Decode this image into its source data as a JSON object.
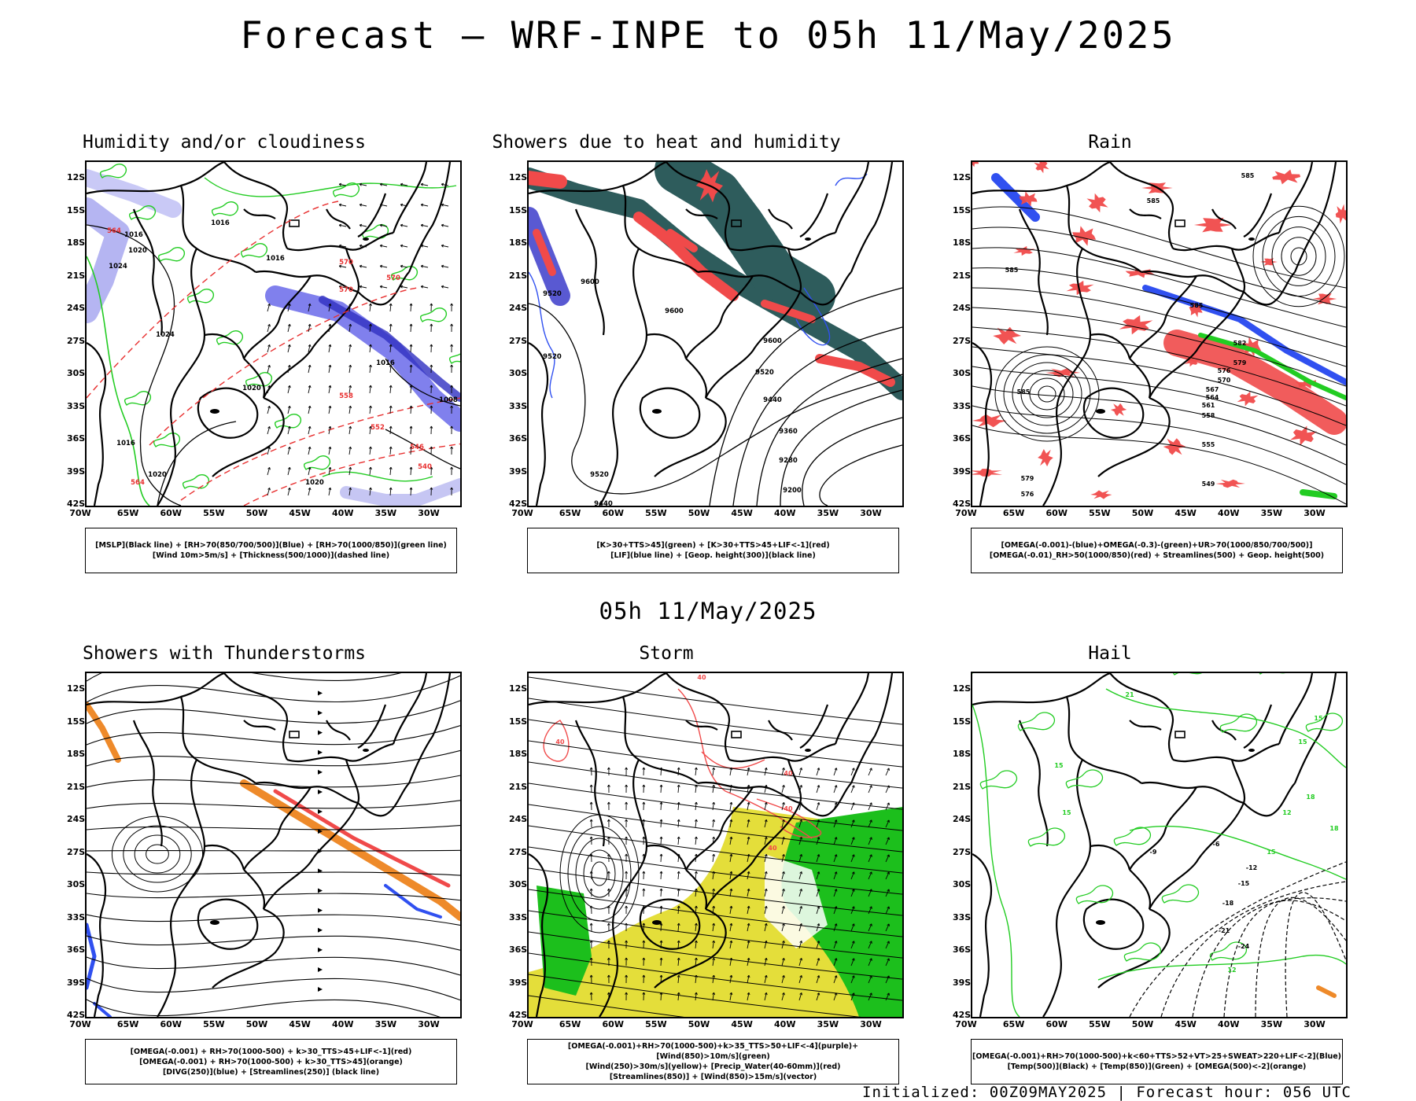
{
  "main_title": "Forecast — WRF-INPE to 05h 11/May/2025",
  "subtitle": "05h 11/May/2025",
  "footer": "Initialized: 00Z09MAY2025 | Forecast hour: 056 UTC",
  "lat_labels": [
    "12S",
    "15S",
    "18S",
    "21S",
    "24S",
    "27S",
    "30S",
    "33S",
    "36S",
    "39S",
    "42S"
  ],
  "lon_labels": [
    "70W",
    "65W",
    "60W",
    "55W",
    "50W",
    "45W",
    "40W",
    "35W",
    "30W"
  ],
  "panels": [
    {
      "title": "Humidity and/or cloudiness",
      "legend": [
        "[MSLP](Black line) + [RH>70(850/700/500)](Blue) + [RH>70(1000/850)](green line)",
        "[Wind 10m>5m/s] + [Thickness(500/1000)](dashed line)"
      ],
      "labels": [
        "1016",
        "1020",
        "1024",
        "1024",
        "1020",
        "1016",
        "1016",
        "1020",
        "1024",
        "1008",
        "1020",
        "1016",
        "1016",
        "570",
        "570",
        "570",
        "564",
        "558",
        "552",
        "546",
        "540",
        "564"
      ]
    },
    {
      "title": "Showers due to heat and humidity",
      "legend": [
        "[K>30+TTS>45](green) + [K>30+TTS>45+LIF<-1](red)",
        "[LIF](blue line) + [Geop. height(300)](black line)"
      ],
      "labels": [
        "9600",
        "9600",
        "9600",
        "9520",
        "9440",
        "9360",
        "9280",
        "9200",
        "9520",
        "9440",
        "9520",
        "9520"
      ]
    },
    {
      "title": "Rain",
      "legend": [
        "[OMEGA(-0.001)-(blue)+OMEGA(-0.3)-(green)+UR>70(1000/850/700/500)]",
        "[OMEGA(-0.01)_RH>50(1000/850)(red) + Streamlines(500) + Geop. height(500)"
      ],
      "labels": [
        "585",
        "585",
        "585",
        "585",
        "582",
        "579",
        "576",
        "570",
        "567",
        "564",
        "561",
        "558",
        "555",
        "549",
        "585",
        "579",
        "576"
      ]
    },
    {
      "title": "Showers with Thunderstorms",
      "legend": [
        "[OMEGA(-0.001) + RH>70(1000-500) + k>30_TTS>45+LIF<-1](red)",
        "[OMEGA(-0.001) + RH>70(1000-500) + k>30_TTS>45](orange)",
        "[DIVG(250)](blue) + [Streamlines(250)] (black line)"
      ],
      "labels": []
    },
    {
      "title": "Storm",
      "legend": [
        "[OMEGA(-0.001)+RH>70(1000-500)+k>35_TTS>50+LIF<-4](purple)+[Wind(850)>10m/s](green)",
        "[Wind(250)>30m/s](yellow)+ [Precip_Water(40-60mm)](red)",
        "[Streamlines(850)] + [Wind(850)>15m/s](vector)"
      ],
      "labels": [
        "40",
        "40",
        "40",
        "40",
        "40"
      ]
    },
    {
      "title": "Hail",
      "legend": [
        "[OMEGA(-0.001)+RH>70(1000-500)+k<60+TTS>52+VT>25+SWEAT>220+LIF<-2](Blue)",
        "[Temp(500)](Black) + [Temp(850)](Green) + [OMEGA(500)<-2](orange)"
      ],
      "labels": [
        "21",
        "15",
        "15",
        "12",
        "15",
        "15",
        "-9",
        "-12",
        "-15",
        "-18",
        "-21",
        "-24",
        "12",
        "15",
        "-6",
        "18",
        "18"
      ]
    }
  ],
  "colors": {
    "mslp": "#000000",
    "rh_blue": "#6060e8",
    "rh_green": "#22cc22",
    "thick": "#e83030",
    "red": "#f04a4a",
    "teal": "#2e5c5c",
    "blue_line": "#3050f0",
    "orange": "#ee8a2a",
    "yellow": "#e4de3a",
    "green_fill": "#1cbf1c",
    "purple": "#9070d0"
  }
}
